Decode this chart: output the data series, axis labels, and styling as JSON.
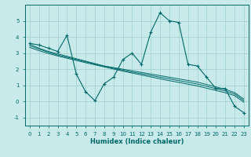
{
  "x": [
    0,
    1,
    2,
    3,
    4,
    5,
    6,
    7,
    8,
    9,
    10,
    11,
    12,
    13,
    14,
    15,
    16,
    17,
    18,
    19,
    20,
    21,
    22,
    23
  ],
  "y_main": [
    3.6,
    3.5,
    3.3,
    3.1,
    4.1,
    1.7,
    0.6,
    0.05,
    1.1,
    1.5,
    2.6,
    3.0,
    2.3,
    4.3,
    5.5,
    5.0,
    4.9,
    2.3,
    2.2,
    1.5,
    0.8,
    0.8,
    -0.3,
    -0.7
  ],
  "y_line1": [
    3.55,
    3.3,
    3.1,
    2.95,
    2.8,
    2.65,
    2.5,
    2.35,
    2.2,
    2.1,
    2.0,
    1.9,
    1.8,
    1.7,
    1.6,
    1.5,
    1.4,
    1.3,
    1.2,
    1.05,
    0.9,
    0.75,
    0.55,
    0.15
  ],
  "y_line2": [
    3.35,
    3.15,
    2.97,
    2.82,
    2.68,
    2.54,
    2.4,
    2.27,
    2.14,
    2.01,
    1.88,
    1.76,
    1.64,
    1.52,
    1.4,
    1.29,
    1.18,
    1.07,
    0.96,
    0.82,
    0.68,
    0.54,
    0.36,
    -0.05
  ],
  "y_line3": [
    3.45,
    3.25,
    3.05,
    2.88,
    2.74,
    2.6,
    2.46,
    2.32,
    2.18,
    2.06,
    1.94,
    1.82,
    1.72,
    1.61,
    1.5,
    1.4,
    1.29,
    1.19,
    1.08,
    0.94,
    0.79,
    0.65,
    0.46,
    0.05
  ],
  "color": "#006868",
  "bg_color": "#c8eaea",
  "grid_color": "#9ecece",
  "xlabel": "Humidex (Indice chaleur)",
  "ylim": [
    -1.5,
    6.0
  ],
  "xlim": [
    -0.5,
    23.5
  ],
  "yticks": [
    -1,
    0,
    1,
    2,
    3,
    4,
    5
  ],
  "xticks": [
    0,
    1,
    2,
    3,
    4,
    5,
    6,
    7,
    8,
    9,
    10,
    11,
    12,
    13,
    14,
    15,
    16,
    17,
    18,
    19,
    20,
    21,
    22,
    23
  ]
}
